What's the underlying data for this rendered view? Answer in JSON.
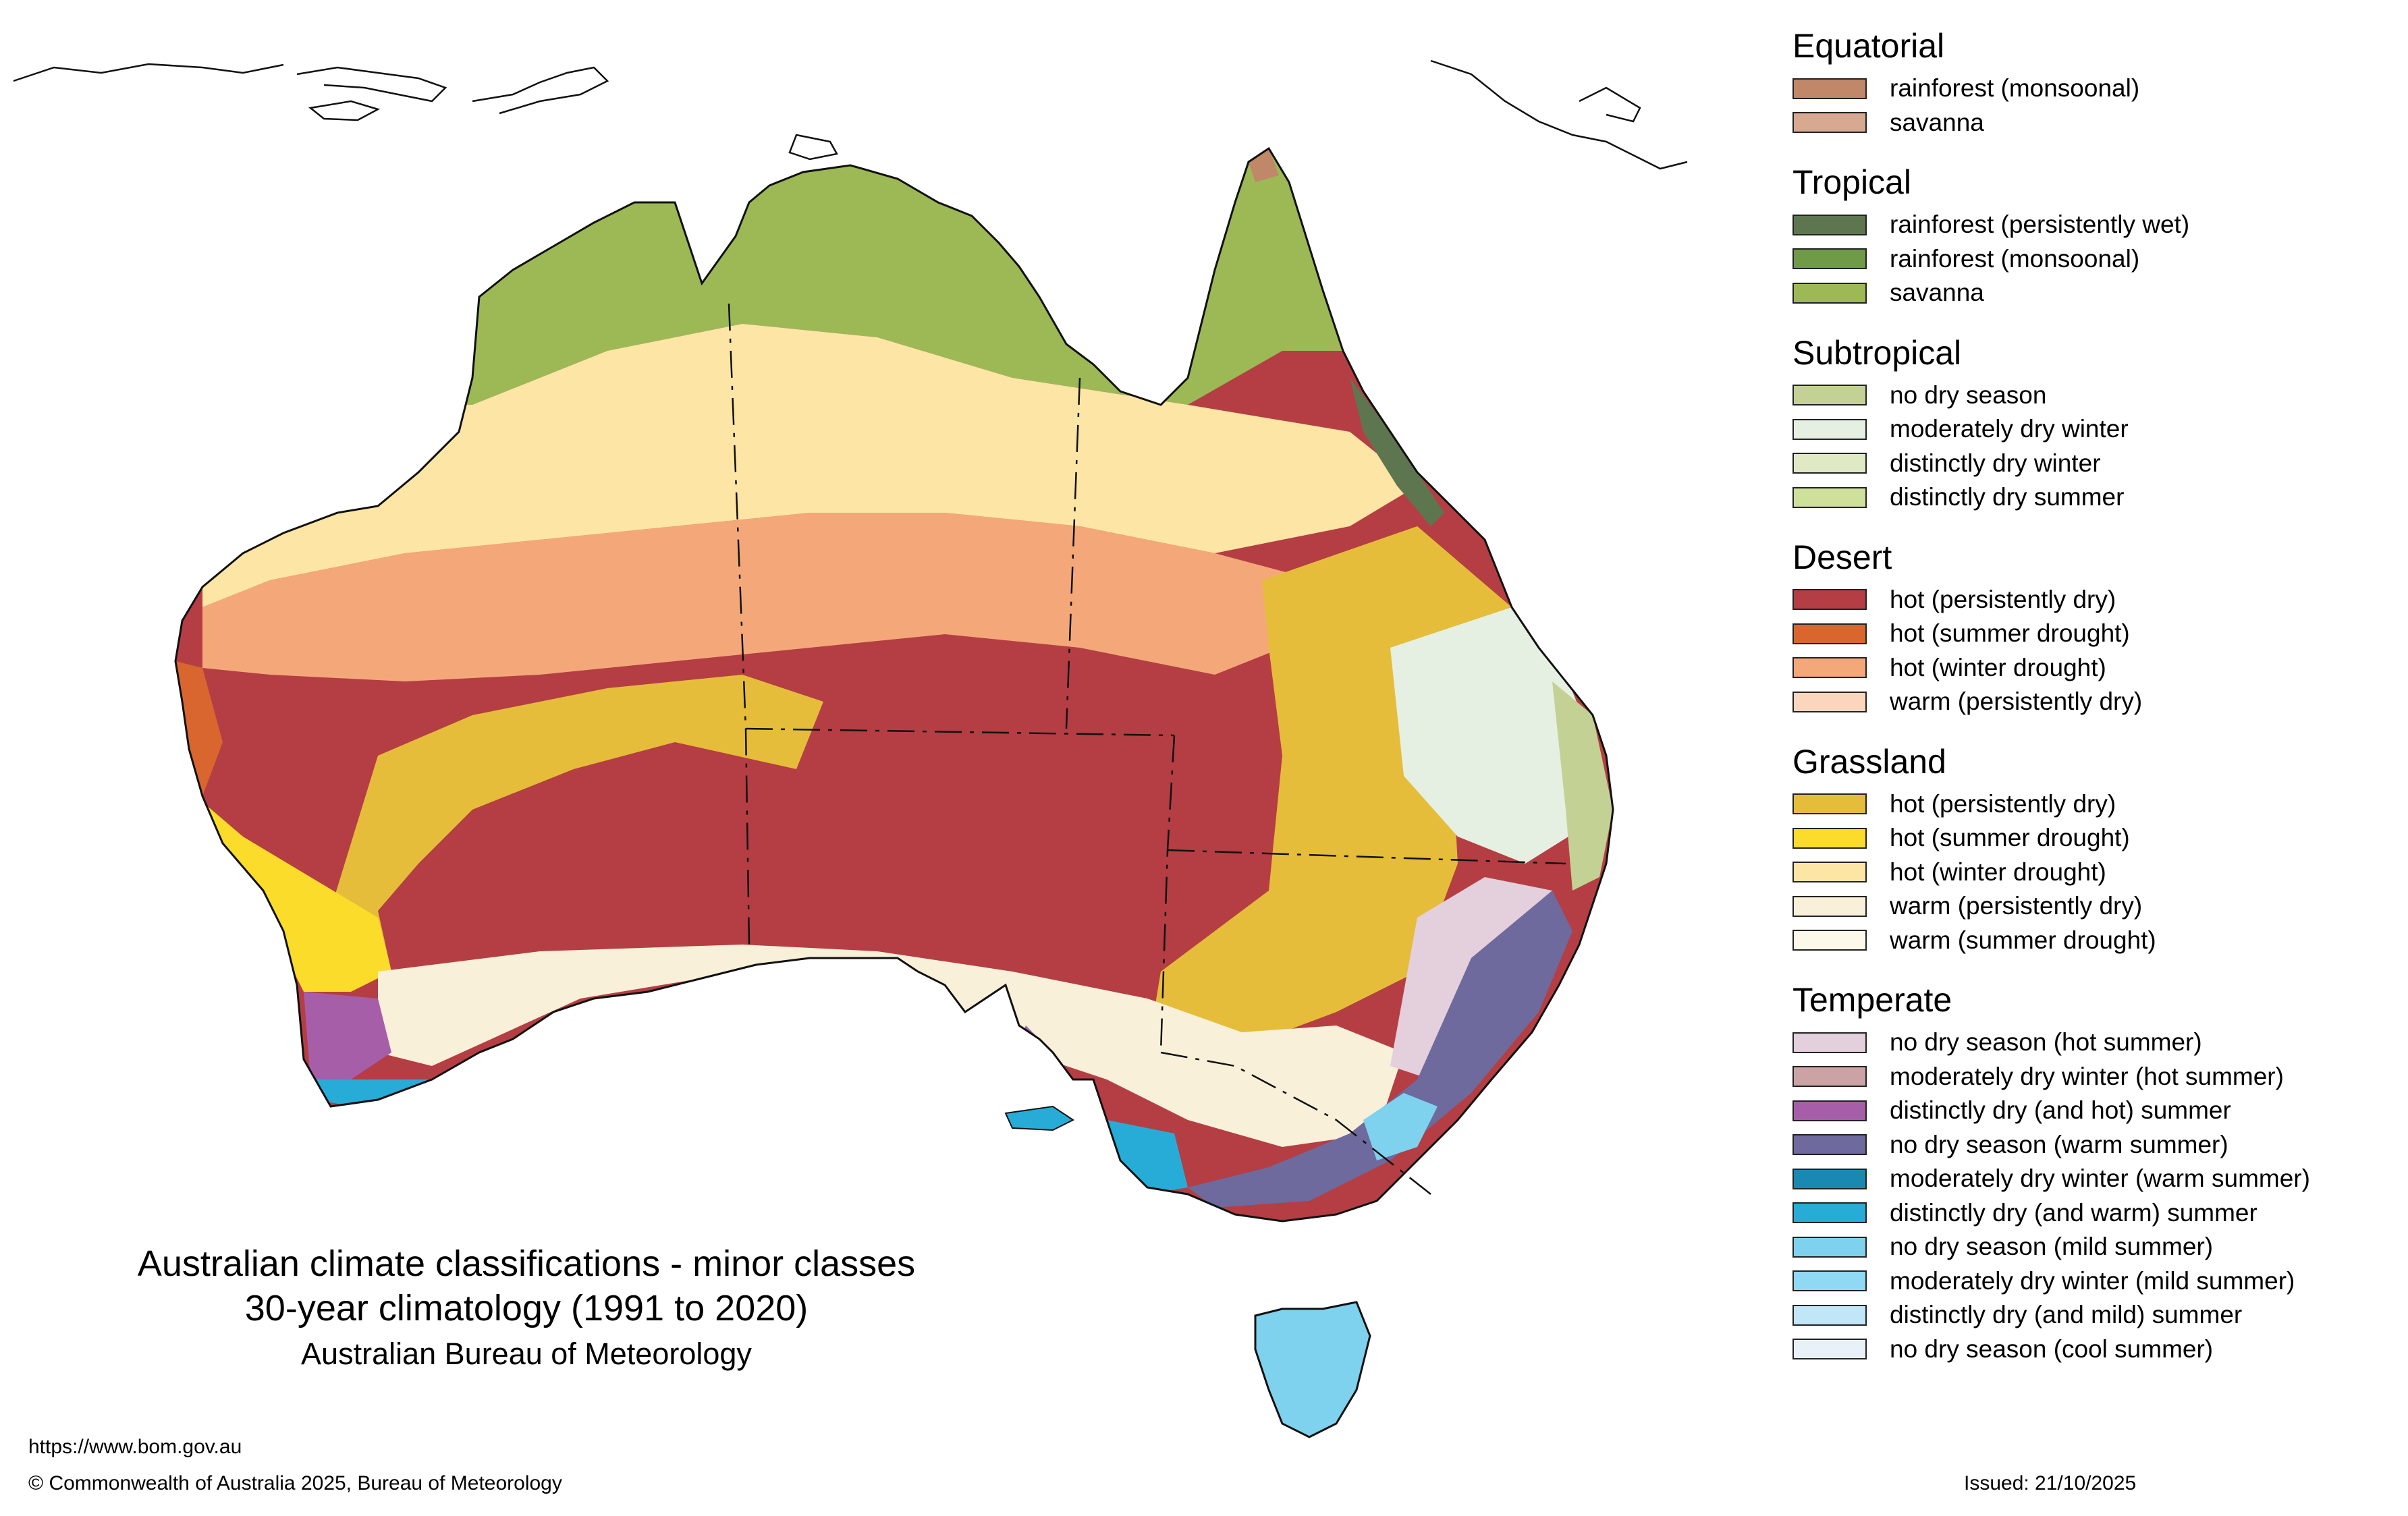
{
  "title": {
    "line1": "Australian climate classifications - minor classes",
    "line2": "30-year climatology (1991 to 2020)",
    "line3": "Australian Bureau of Meteorology"
  },
  "footer": {
    "url": "https://www.bom.gov.au",
    "copyright": "© Commonwealth of Australia 2025, Bureau of Meteorology",
    "issued": "Issued: 21/10/2025"
  },
  "legend": {
    "groups": [
      {
        "title": "Equatorial",
        "items": [
          {
            "label": "rainforest (monsoonal)",
            "color": "#c08868"
          },
          {
            "label": "savanna",
            "color": "#d6a990"
          }
        ]
      },
      {
        "title": "Tropical",
        "items": [
          {
            "label": "rainforest (persistently wet)",
            "color": "#5e7650"
          },
          {
            "label": "rainforest (monsoonal)",
            "color": "#6f9a48"
          },
          {
            "label": "savanna",
            "color": "#9cb956"
          }
        ]
      },
      {
        "title": "Subtropical",
        "items": [
          {
            "label": "no dry season",
            "color": "#c4d194"
          },
          {
            "label": "moderately dry winter",
            "color": "#e5f0e2"
          },
          {
            "label": "distinctly dry winter",
            "color": "#dfeac4"
          },
          {
            "label": "distinctly dry summer",
            "color": "#cfe09a"
          }
        ]
      },
      {
        "title": "Desert",
        "items": [
          {
            "label": "hot (persistently dry)",
            "color": "#b43e43"
          },
          {
            "label": "hot (summer drought)",
            "color": "#d9662f"
          },
          {
            "label": "hot (winter drought)",
            "color": "#f4a87a"
          },
          {
            "label": "warm (persistently dry)",
            "color": "#fbd6bd"
          }
        ]
      },
      {
        "title": "Grassland",
        "items": [
          {
            "label": "hot (persistently dry)",
            "color": "#e5bd3b"
          },
          {
            "label": "hot (summer drought)",
            "color": "#fbdc2b"
          },
          {
            "label": "hot (winter drought)",
            "color": "#fde5a6"
          },
          {
            "label": "warm (persistently dry)",
            "color": "#f8f0d8"
          },
          {
            "label": "warm (summer drought)",
            "color": "#fdf9ea"
          }
        ]
      },
      {
        "title": "Temperate",
        "items": [
          {
            "label": "no dry season (hot summer)",
            "color": "#e4cfdc"
          },
          {
            "label": "moderately dry winter (hot summer)",
            "color": "#cba3a4"
          },
          {
            "label": "distinctly dry (and hot) summer",
            "color": "#a65ea8"
          },
          {
            "label": "no dry season (warm summer)",
            "color": "#6e6a9e"
          },
          {
            "label": "moderately dry winter (warm summer)",
            "color": "#1989b2"
          },
          {
            "label": "distinctly dry (and warm) summer",
            "color": "#27acd8"
          },
          {
            "label": "no dry season (mild summer)",
            "color": "#7fd2ee"
          },
          {
            "label": "moderately dry winter (mild summer)",
            "color": "#8fd9f4"
          },
          {
            "label": "distinctly dry (and mild) summer",
            "color": "#c0e6f7"
          },
          {
            "label": "no dry season (cool summer)",
            "color": "#e8f1f8"
          }
        ]
      }
    ]
  }
}
